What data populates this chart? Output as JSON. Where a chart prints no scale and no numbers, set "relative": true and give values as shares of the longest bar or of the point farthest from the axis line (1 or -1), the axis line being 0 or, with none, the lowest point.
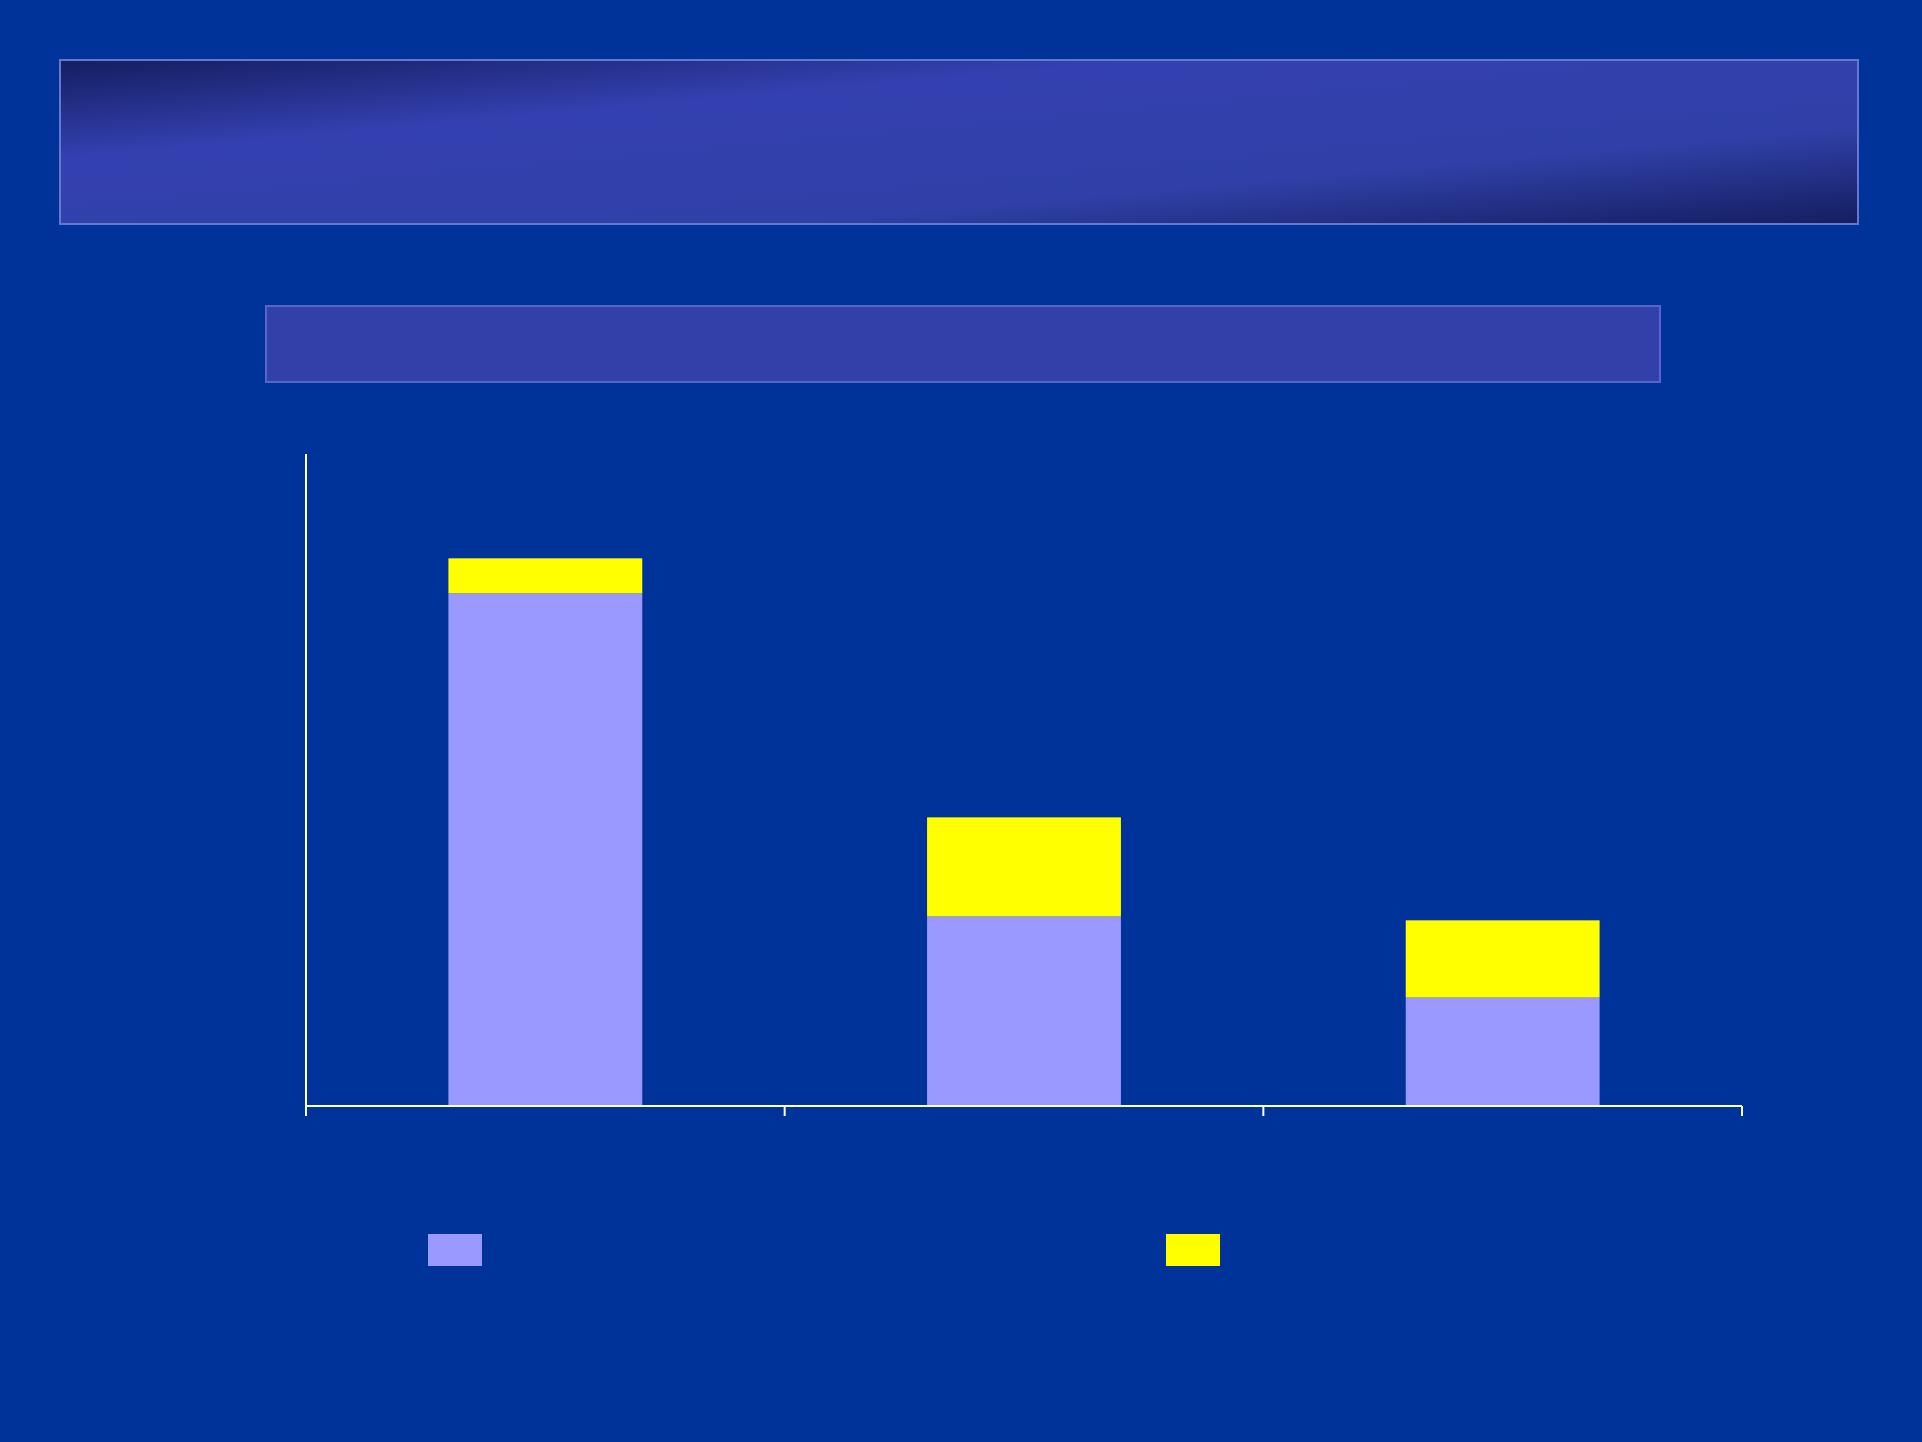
{
  "chart_data": {
    "type": "bar",
    "stacked": true,
    "relative": true,
    "categories": [
      null,
      null,
      null
    ],
    "series": [
      {
        "color": "#9999ff",
        "values": [
          0.936,
          0.346,
          0.198
        ]
      },
      {
        "color": "#ffff00",
        "values": [
          0.064,
          0.181,
          0.141
        ]
      }
    ]
  }
}
